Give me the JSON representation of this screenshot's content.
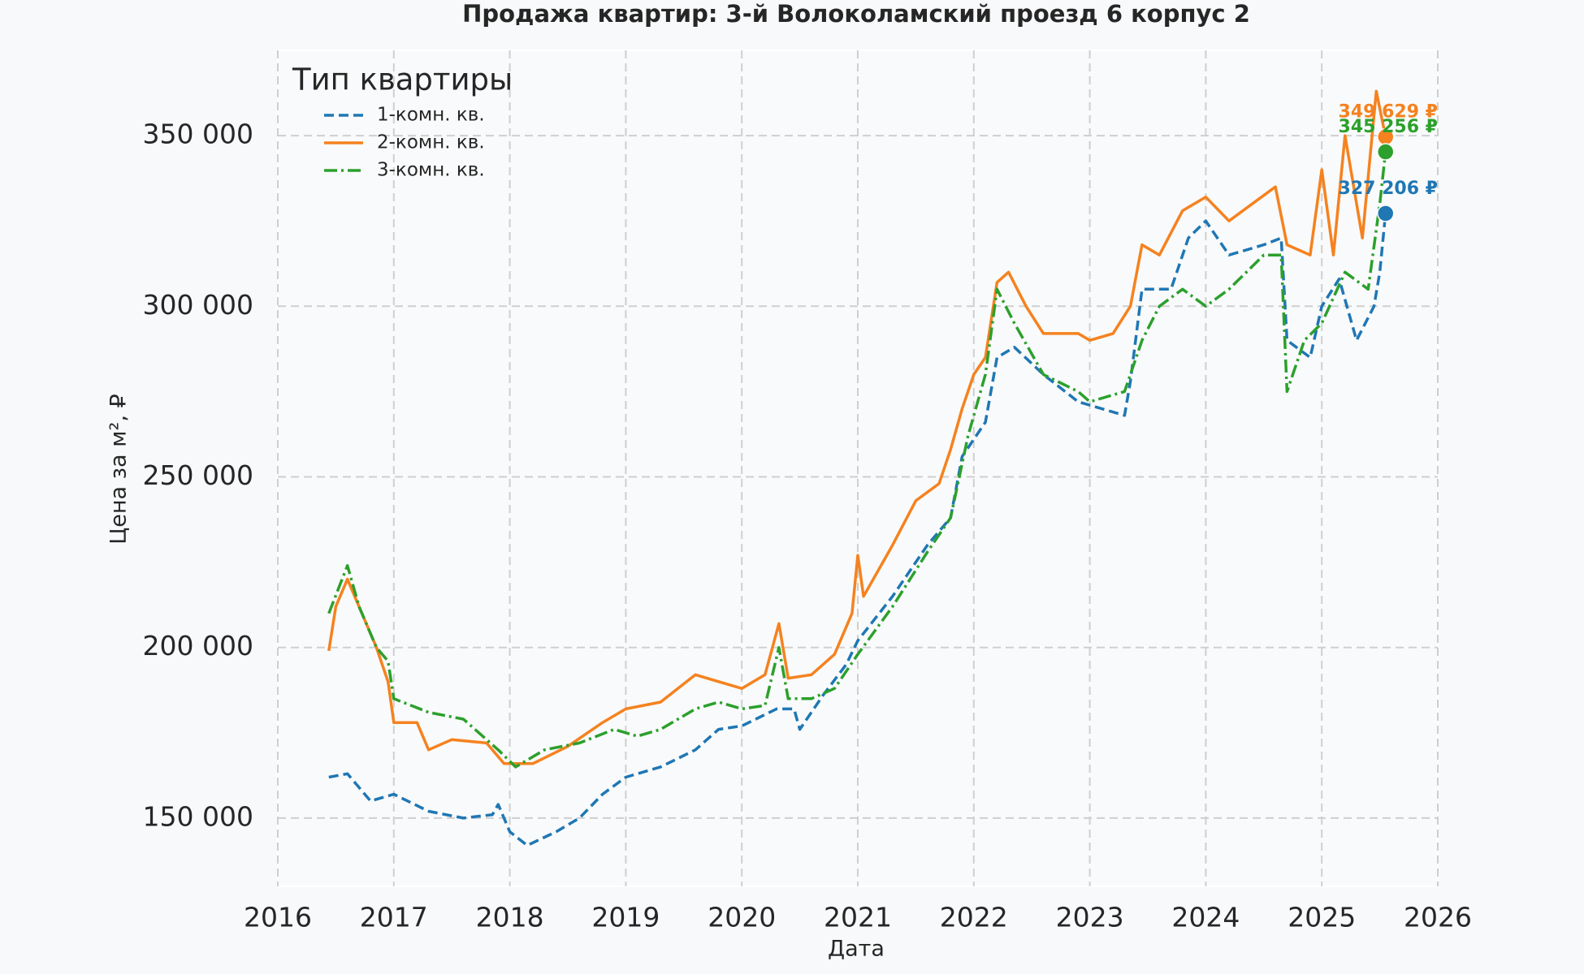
{
  "chart_data": {
    "type": "line",
    "title": "Продажа квартир: 3-й Волоколамский проезд 6 корпус 2",
    "xlabel": "Дата",
    "ylabel": "Цена за м², ₽",
    "legend_title": "Тип квартиры",
    "legend_loc": "upper left",
    "grid": true,
    "xlim": [
      2016,
      2026
    ],
    "xticks": [
      2016,
      2017,
      2018,
      2019,
      2020,
      2021,
      2022,
      2023,
      2024,
      2025,
      2026
    ],
    "ylim": [
      130000,
      375000
    ],
    "yticks": [
      {
        "value": 150000,
        "label": "150 000"
      },
      {
        "value": 200000,
        "label": "200 000"
      },
      {
        "value": 250000,
        "label": "250 000"
      },
      {
        "value": 300000,
        "label": "300 000"
      },
      {
        "value": 350000,
        "label": "350 000"
      }
    ],
    "series": [
      {
        "name": "1-комн. кв.",
        "color": "#1f77b4",
        "linestyle": "dashed",
        "x": [
          2016.44,
          2016.6,
          2016.8,
          2017.0,
          2017.3,
          2017.6,
          2017.85,
          2017.9,
          2018.0,
          2018.15,
          2018.4,
          2018.6,
          2018.8,
          2019.0,
          2019.3,
          2019.6,
          2019.8,
          2020.0,
          2020.3,
          2020.45,
          2020.5,
          2020.7,
          2020.9,
          2021.0,
          2021.3,
          2021.6,
          2021.8,
          2021.9,
          2022.1,
          2022.2,
          2022.35,
          2022.6,
          2022.9,
          2023.1,
          2023.3,
          2023.35,
          2023.45,
          2023.7,
          2023.85,
          2024.0,
          2024.2,
          2024.5,
          2024.65,
          2024.7,
          2024.9,
          2025.0,
          2025.15,
          2025.3,
          2025.45,
          2025.5,
          2025.55
        ],
        "values": [
          162000,
          163000,
          155000,
          157000,
          152000,
          150000,
          151000,
          154000,
          146000,
          142000,
          146000,
          150000,
          157000,
          162000,
          165000,
          170000,
          176000,
          177000,
          182000,
          182000,
          176000,
          186000,
          195000,
          202000,
          215000,
          230000,
          238000,
          256000,
          266000,
          285000,
          288000,
          280000,
          272000,
          270000,
          268000,
          278000,
          305000,
          305000,
          320000,
          325000,
          315000,
          318000,
          320000,
          290000,
          285000,
          300000,
          308000,
          290000,
          300000,
          310000,
          327206
        ]
      },
      {
        "name": "2-комн. кв.",
        "color": "#f5821f",
        "linestyle": "solid",
        "x": [
          2016.44,
          2016.5,
          2016.6,
          2016.7,
          2016.85,
          2016.95,
          2017.0,
          2017.2,
          2017.3,
          2017.5,
          2017.8,
          2017.95,
          2018.2,
          2018.5,
          2018.8,
          2019.0,
          2019.3,
          2019.6,
          2019.8,
          2020.0,
          2020.2,
          2020.32,
          2020.4,
          2020.6,
          2020.8,
          2020.95,
          2021.0,
          2021.05,
          2021.3,
          2021.5,
          2021.7,
          2021.8,
          2021.9,
          2022.0,
          2022.1,
          2022.2,
          2022.3,
          2022.45,
          2022.6,
          2022.9,
          2023.0,
          2023.2,
          2023.35,
          2023.45,
          2023.6,
          2023.8,
          2024.0,
          2024.2,
          2024.4,
          2024.6,
          2024.7,
          2024.9,
          2025.0,
          2025.1,
          2025.2,
          2025.35,
          2025.47,
          2025.55
        ],
        "values": [
          199000,
          212000,
          220000,
          212000,
          200000,
          190000,
          178000,
          178000,
          170000,
          173000,
          172000,
          166000,
          166000,
          171000,
          178000,
          182000,
          184000,
          192000,
          190000,
          188000,
          192000,
          207000,
          191000,
          192000,
          198000,
          210000,
          227000,
          215000,
          230000,
          243000,
          248000,
          258000,
          270000,
          280000,
          285000,
          307000,
          310000,
          300000,
          292000,
          292000,
          290000,
          292000,
          300000,
          318000,
          315000,
          328000,
          332000,
          325000,
          330000,
          335000,
          318000,
          315000,
          340000,
          315000,
          350000,
          320000,
          363000,
          349629
        ]
      },
      {
        "name": "3-комн. кв.",
        "color": "#2ca02c",
        "linestyle": "dashdot",
        "x": [
          2016.44,
          2016.6,
          2016.7,
          2016.85,
          2016.95,
          2017.0,
          2017.3,
          2017.6,
          2017.9,
          2018.05,
          2018.3,
          2018.6,
          2018.9,
          2019.1,
          2019.3,
          2019.6,
          2019.8,
          2020.0,
          2020.2,
          2020.32,
          2020.4,
          2020.6,
          2020.8,
          2021.0,
          2021.3,
          2021.6,
          2021.8,
          2021.95,
          2022.1,
          2022.2,
          2022.35,
          2022.6,
          2022.9,
          2023.0,
          2023.3,
          2023.45,
          2023.6,
          2023.8,
          2024.0,
          2024.2,
          2024.5,
          2024.65,
          2024.7,
          2024.85,
          2025.0,
          2025.2,
          2025.4,
          2025.5,
          2025.55
        ],
        "values": [
          210000,
          224000,
          212000,
          200000,
          196000,
          185000,
          181000,
          179000,
          170000,
          165000,
          170000,
          172000,
          176000,
          174000,
          176000,
          182000,
          184000,
          182000,
          183000,
          200000,
          185000,
          185000,
          188000,
          198000,
          212000,
          228000,
          238000,
          262000,
          280000,
          305000,
          295000,
          280000,
          275000,
          272000,
          275000,
          290000,
          300000,
          305000,
          300000,
          305000,
          315000,
          315000,
          275000,
          290000,
          295000,
          310000,
          305000,
          330000,
          345256
        ]
      }
    ],
    "annotations": [
      {
        "x": 2025.55,
        "y": 349629,
        "label": "349 629 ₽",
        "color": "#f5821f"
      },
      {
        "x": 2025.55,
        "y": 345256,
        "label": "345 256 ₽",
        "color": "#2ca02c"
      },
      {
        "x": 2025.55,
        "y": 327206,
        "label": "327 206 ₽",
        "color": "#1f77b4"
      }
    ]
  }
}
